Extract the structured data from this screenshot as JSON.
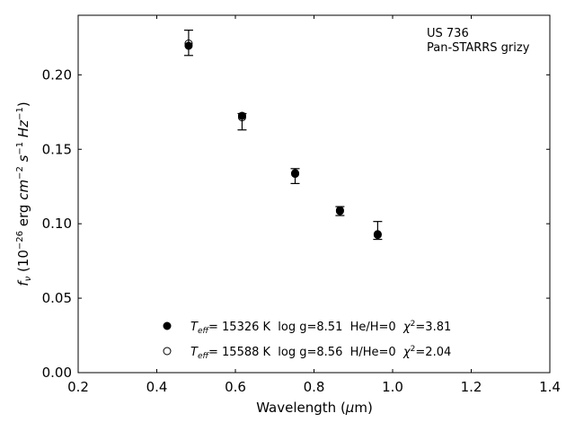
{
  "chart_data": {
    "type": "scatter",
    "xlim": [
      0.2,
      1.4
    ],
    "ylim": [
      0.0,
      0.24
    ],
    "x_ticks": [
      "0.2",
      "0.4",
      "0.6",
      "0.8",
      "1.0",
      "1.2",
      "1.4"
    ],
    "y_ticks": [
      "0.00",
      "0.05",
      "0.10",
      "0.15",
      "0.20"
    ],
    "grid": false,
    "legend_placement": "bottom-center",
    "annotation": [
      "US 736",
      "Pan-STARRS grizy"
    ],
    "observed": [
      {
        "x": 0.481,
        "y": 0.2215,
        "err": 0.0085
      },
      {
        "x": 0.617,
        "y": 0.1685,
        "err": 0.0055
      },
      {
        "x": 0.752,
        "y": 0.132,
        "err": 0.005
      },
      {
        "x": 0.866,
        "y": 0.1085,
        "err": 0.003
      },
      {
        "x": 0.962,
        "y": 0.0955,
        "err": 0.006
      }
    ],
    "series": [
      {
        "marker": "filled-circle",
        "values": [
          {
            "x": 0.481,
            "y": 0.2195
          },
          {
            "x": 0.617,
            "y": 0.1725
          },
          {
            "x": 0.752,
            "y": 0.134
          },
          {
            "x": 0.866,
            "y": 0.1085
          },
          {
            "x": 0.962,
            "y": 0.0925
          }
        ]
      },
      {
        "marker": "open-circle",
        "values": [
          {
            "x": 0.481,
            "y": 0.221
          },
          {
            "x": 0.617,
            "y": 0.1715
          },
          {
            "x": 0.752,
            "y": 0.1335
          },
          {
            "x": 0.866,
            "y": 0.109
          },
          {
            "x": 0.962,
            "y": 0.093
          }
        ]
      }
    ],
    "legend": [
      {
        "teff_sym": "T",
        "teff_sub": "eff",
        "text": "= 15326 K  log g=8.51  He/H=0  ",
        "chi": "χ",
        "chi_sup": "2",
        "chi_val": "=3.81"
      },
      {
        "teff_sym": "T",
        "teff_sub": "eff",
        "text": "= 15588 K  log g=8.56  H/He=0  ",
        "chi": "χ",
        "chi_sup": "2",
        "chi_val": "=2.04"
      }
    ],
    "xlabel": {
      "text": "Wavelength (",
      "mu": "μ",
      "unit": "m)"
    },
    "ylabel": {
      "f": "f",
      "nu": "ν",
      "open": " (10",
      "exp1": "−26",
      "mid1": " erg ",
      "cm": "cm",
      "exp2": "−2",
      "s": " s",
      "exp3": "−1",
      "hz": " Hz",
      "exp4": "−1",
      "close": ")"
    }
  }
}
